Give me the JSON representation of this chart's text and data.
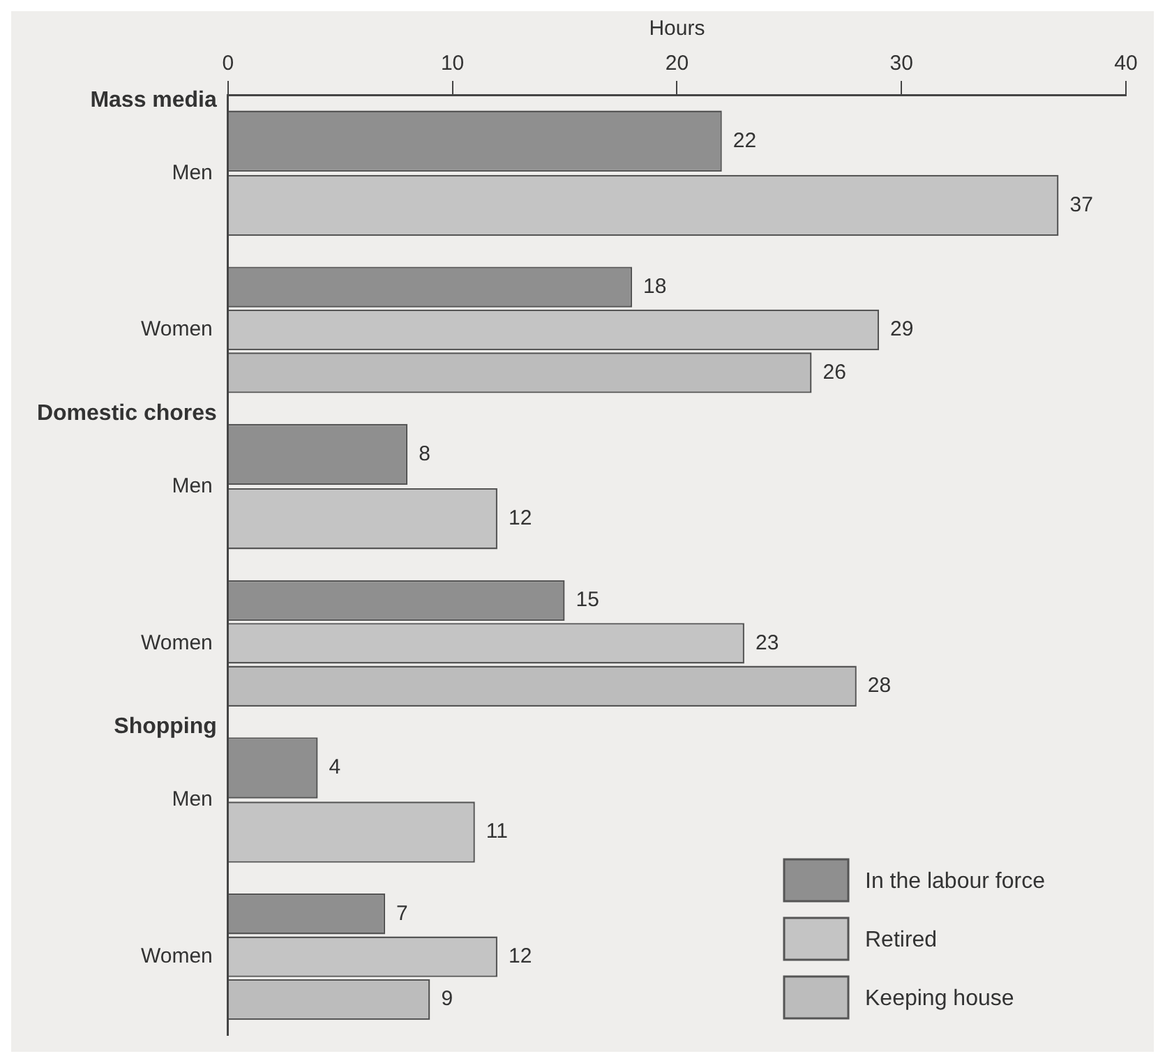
{
  "chart_data": {
    "type": "bar",
    "orientation": "horizontal",
    "xlabel": "Hours",
    "categories": [
      "Men",
      "Women",
      "Men",
      "Women",
      "Men",
      "Women"
    ],
    "annotations": [
      "Mass media",
      "Domestic chores",
      "Shopping"
    ],
    "series": [
      {
        "name": "In the labour force",
        "color": "#8f8f8f",
        "values": [
          22,
          18,
          8,
          15,
          4,
          7
        ]
      },
      {
        "name": "Retired",
        "color": "#c4c4c4",
        "values": [
          37,
          29,
          12,
          23,
          11,
          12
        ]
      },
      {
        "name": "Keeping house",
        "color": "#bcbcbc",
        "values": [
          null,
          26,
          null,
          28,
          null,
          9
        ]
      }
    ],
    "xlim": [
      0,
      40
    ],
    "xticks": [
      0,
      10,
      20,
      30,
      40
    ],
    "data_labels": true,
    "legend": "bottom right",
    "grid": false
  }
}
